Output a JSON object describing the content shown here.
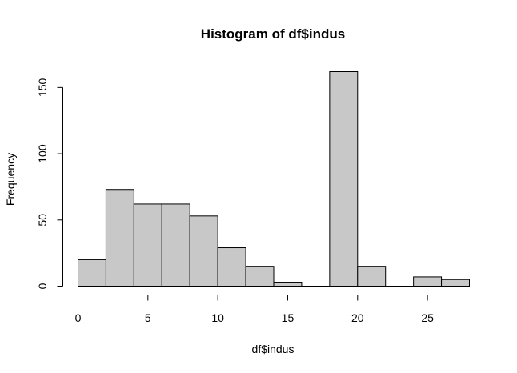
{
  "chart_data": {
    "type": "bar",
    "title": "Histogram of df$indus",
    "xlabel": "df$indus",
    "ylabel": "Frequency",
    "bin_edges": [
      0,
      2,
      4,
      6,
      8,
      10,
      12,
      14,
      16,
      18,
      20,
      22,
      24,
      26,
      28
    ],
    "values": [
      20,
      73,
      62,
      62,
      53,
      29,
      15,
      3,
      0,
      162,
      15,
      0,
      7,
      5
    ],
    "xlim": [
      0,
      28
    ],
    "ylim": [
      0,
      162
    ],
    "x_ticks": [
      0,
      5,
      10,
      15,
      20,
      25
    ],
    "x_tick_labels": [
      "0",
      "5",
      "10",
      "15",
      "20",
      "25"
    ],
    "y_ticks": [
      0,
      50,
      100,
      150
    ],
    "y_tick_labels": [
      "0",
      "50",
      "100",
      "150"
    ],
    "bar_fill": "#c8c8c8",
    "bar_stroke": "#000000",
    "grid": false,
    "legend": "none"
  }
}
